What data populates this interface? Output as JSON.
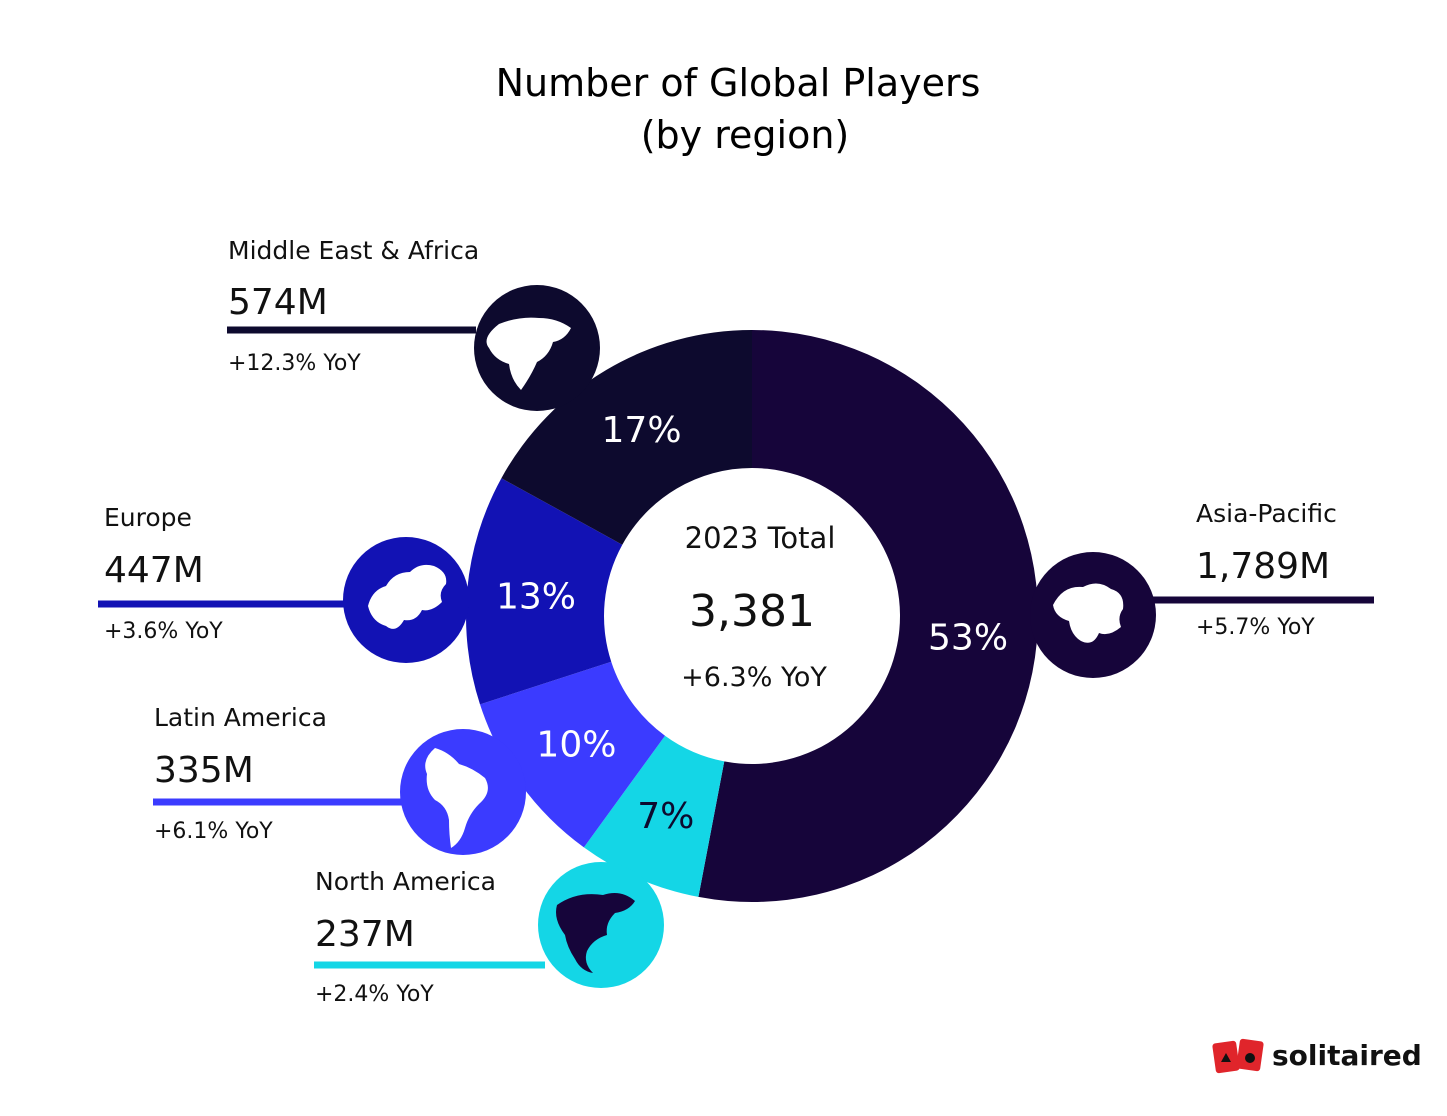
{
  "chart_data": {
    "type": "pie",
    "title": "Number of Global Players",
    "subtitle": "(by region)",
    "center": {
      "label": "2023 Total",
      "total": "3,381",
      "yoy": "+6.3% YoY"
    },
    "categories": [
      "Asia-Pacific",
      "North America",
      "Latin America",
      "Europe",
      "Middle East & Africa"
    ],
    "values": [
      53,
      7,
      10,
      13,
      17
    ],
    "value_labels": [
      "53%",
      "7%",
      "10%",
      "13%",
      "17%"
    ],
    "players": [
      "1,789M",
      "237M",
      "335M",
      "447M",
      "574M"
    ],
    "yoy": [
      "+5.7% YoY",
      "+2.4% YoY",
      "+6.1% YoY",
      "+3.6% YoY",
      "+12.3% YoY"
    ],
    "colors": [
      "#16053a",
      "#14d6e6",
      "#3b3bff",
      "#1212b4",
      "#0d0a2e"
    ],
    "icons": [
      "asia-map-icon",
      "north-america-map-icon",
      "south-america-map-icon",
      "europe-map-icon",
      "middle-east-map-icon"
    ]
  },
  "logo": {
    "text": "solitaired",
    "icon": "playing-cards-icon"
  }
}
